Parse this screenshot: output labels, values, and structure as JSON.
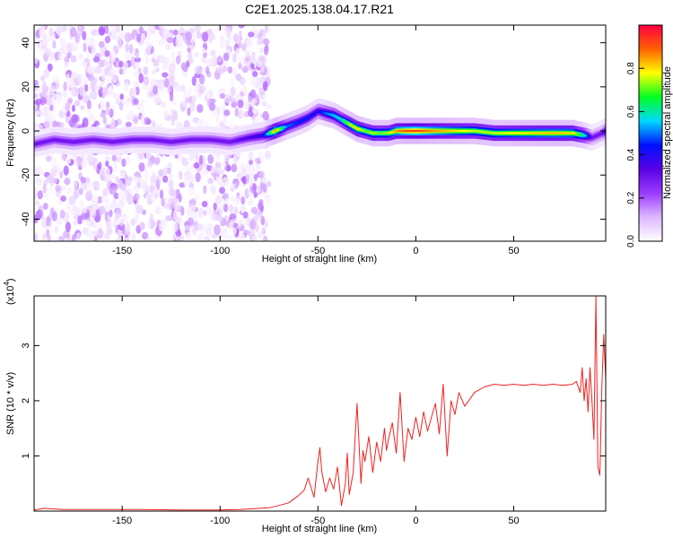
{
  "chart_data": [
    {
      "type": "heatmap",
      "title": "C2E1.2025.138.04.17.R21",
      "xlabel": "Height of straight line (km)",
      "ylabel": "Frequency (Hz)",
      "xlim": [
        -195,
        97
      ],
      "ylim": [
        -50,
        48
      ],
      "x_ticks": [
        -150,
        -100,
        -50,
        0,
        50
      ],
      "y_ticks": [
        -40,
        -20,
        0,
        20,
        40
      ],
      "colorbar": {
        "label": "Normalized spectral amplitude",
        "range": [
          0,
          1
        ],
        "ticks": [
          "0.0",
          "0.2",
          "0.4",
          "0.6",
          "0.8"
        ],
        "colors": [
          "#ffffff",
          "#ddb8ff",
          "#9c3bff",
          "#5a00e6",
          "#0010ff",
          "#00d8ff",
          "#00ff20",
          "#ffff00",
          "#ff6000",
          "#ff0040"
        ]
      },
      "ridge": {
        "x": [
          -195,
          -185,
          -175,
          -165,
          -155,
          -145,
          -135,
          -125,
          -115,
          -105,
          -95,
          -85,
          -78,
          -72,
          -66,
          -60,
          -55,
          -50,
          -46,
          -42,
          -38,
          -34,
          -30,
          -26,
          -22,
          -18,
          -14,
          -10,
          -5,
          0,
          5,
          10,
          20,
          30,
          40,
          50,
          60,
          70,
          80,
          86,
          90,
          95,
          97
        ],
        "y": [
          -6,
          -4,
          -5,
          -4,
          -5,
          -4,
          -4,
          -5,
          -4,
          -4,
          -5,
          -3,
          -2,
          0,
          2,
          4,
          6,
          9,
          8,
          7,
          5,
          3,
          1,
          0,
          -1,
          -1,
          -1,
          0,
          0,
          0,
          0,
          0,
          0,
          0,
          -1,
          -1,
          -1,
          -1,
          -1,
          -2,
          -3,
          -1,
          0
        ],
        "amplitude": [
          0.3,
          0.3,
          0.3,
          0.3,
          0.3,
          0.3,
          0.3,
          0.3,
          0.3,
          0.3,
          0.3,
          0.35,
          0.4,
          0.85,
          0.5,
          0.45,
          0.45,
          0.4,
          0.5,
          0.55,
          0.6,
          0.75,
          0.8,
          0.7,
          0.75,
          0.7,
          0.75,
          0.85,
          0.9,
          0.92,
          0.88,
          0.85,
          0.8,
          0.75,
          0.75,
          0.78,
          0.8,
          0.82,
          0.8,
          0.6,
          0.3,
          0.3,
          0.4
        ]
      },
      "noise_region": {
        "x_range": [
          -195,
          -75
        ],
        "y_range": [
          -50,
          48
        ],
        "amplitude_range": [
          0.02,
          0.2
        ]
      }
    },
    {
      "type": "line",
      "xlabel": "Height of straight line (km)",
      "ylabel": "SNR (10 * v/v)",
      "y_multiplier": "(x10",
      "y_multiplier_exp": "4",
      "y_multiplier_close": ")",
      "xlim": [
        -195,
        97
      ],
      "ylim": [
        0,
        3.9
      ],
      "x_ticks": [
        -150,
        -100,
        -50,
        0,
        50
      ],
      "y_ticks": [
        1,
        2,
        3
      ],
      "series": [
        {
          "color": "#ee2222",
          "x": [
            -195,
            -190,
            -180,
            -160,
            -140,
            -120,
            -100,
            -90,
            -80,
            -75,
            -70,
            -65,
            -60,
            -57,
            -55,
            -52,
            -50,
            -49,
            -48,
            -46,
            -44,
            -42,
            -40,
            -38,
            -36,
            -35,
            -34,
            -32,
            -30,
            -28,
            -27,
            -26,
            -24,
            -22,
            -20,
            -18,
            -16,
            -15,
            -14,
            -12,
            -10,
            -8,
            -6,
            -4,
            -2,
            0,
            2,
            4,
            6,
            8,
            10,
            12,
            14,
            16,
            18,
            20,
            22,
            25,
            28,
            30,
            35,
            40,
            45,
            50,
            55,
            60,
            65,
            70,
            75,
            80,
            82,
            84,
            85,
            86,
            87,
            88,
            89,
            90,
            91,
            92,
            93,
            94,
            95,
            96,
            97
          ],
          "y": [
            0.02,
            0.05,
            0.03,
            0.03,
            0.03,
            0.02,
            0.02,
            0.03,
            0.05,
            0.06,
            0.1,
            0.15,
            0.28,
            0.38,
            0.6,
            0.25,
            0.9,
            1.15,
            0.7,
            0.35,
            0.6,
            0.4,
            0.8,
            0.1,
            0.5,
            1.05,
            0.3,
            0.7,
            1.95,
            0.5,
            1.1,
            0.9,
            1.35,
            0.7,
            1.25,
            0.9,
            1.5,
            1.1,
            1.3,
            1.6,
            1.05,
            2.15,
            0.9,
            1.5,
            1.3,
            1.7,
            1.35,
            1.8,
            1.45,
            1.7,
            1.95,
            1.4,
            2.3,
            1.0,
            2.0,
            1.75,
            2.15,
            1.9,
            2.05,
            2.15,
            2.25,
            2.3,
            2.28,
            2.3,
            2.28,
            2.3,
            2.28,
            2.3,
            2.28,
            2.3,
            2.35,
            2.15,
            2.6,
            2.0,
            2.4,
            1.8,
            2.6,
            2.0,
            1.3,
            3.9,
            0.8,
            0.65,
            2.2,
            3.2,
            2.4
          ]
        }
      ]
    }
  ]
}
